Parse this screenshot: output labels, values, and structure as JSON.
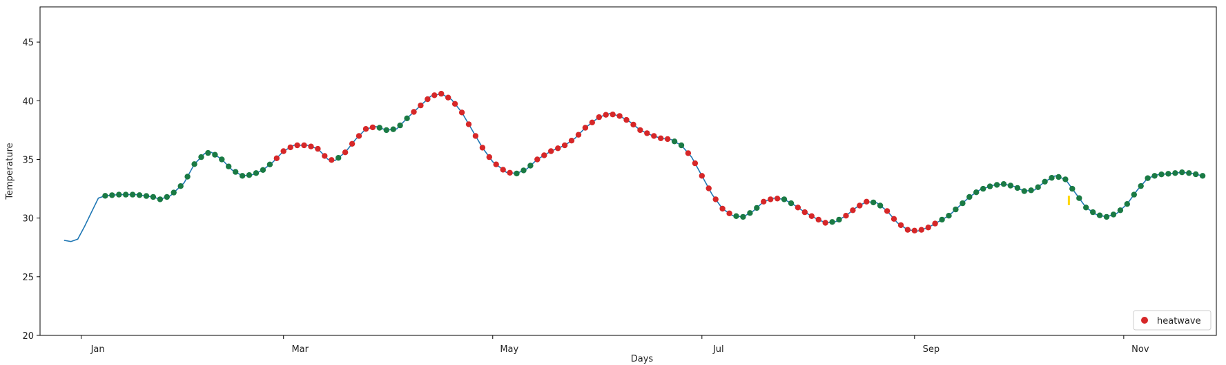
{
  "chart_data": {
    "type": "line",
    "title": "",
    "xlabel": "Days",
    "ylabel": "Temperature",
    "ylim": [
      20,
      48
    ],
    "xlim": [
      "2020-12-20",
      "2021-11-28"
    ],
    "y_ticks": [
      20,
      25,
      30,
      35,
      40,
      45
    ],
    "x_ticks": [
      {
        "date": "2021-01-01",
        "label": "Jan"
      },
      {
        "date": "2021-03-01",
        "label": "Mar"
      },
      {
        "date": "2021-05-01",
        "label": "May"
      },
      {
        "date": "2021-07-01",
        "label": "Jul"
      },
      {
        "date": "2021-09-01",
        "label": "Sep"
      },
      {
        "date": "2021-11-01",
        "label": "Nov"
      }
    ],
    "grid": false,
    "legend": {
      "placement": "bottom-right",
      "entries": [
        {
          "label": "heatwave",
          "color": "#d62728",
          "marker": "circle"
        }
      ]
    },
    "series_colors": {
      "line": "#1f77b4",
      "normal_marker": "#1a7a44",
      "heatwave_marker": "#d62728",
      "annotation": "#ffd700"
    },
    "temperature_curve": [
      [
        "2020-12-27",
        28.1
      ],
      [
        "2020-12-29",
        28.0
      ],
      [
        "2020-12-31",
        28.2
      ],
      [
        "2021-01-02",
        29.3
      ],
      [
        "2021-01-04",
        30.5
      ],
      [
        "2021-01-06",
        31.7
      ],
      [
        "2021-01-08",
        31.9
      ],
      [
        "2021-01-12",
        32.0
      ],
      [
        "2021-01-17",
        32.0
      ],
      [
        "2021-01-22",
        31.8
      ],
      [
        "2021-01-24",
        31.6
      ],
      [
        "2021-01-27",
        31.9
      ],
      [
        "2021-01-31",
        33.0
      ],
      [
        "2021-02-03",
        34.6
      ],
      [
        "2021-02-06",
        35.5
      ],
      [
        "2021-02-08",
        35.6
      ],
      [
        "2021-02-11",
        35.0
      ],
      [
        "2021-02-14",
        34.1
      ],
      [
        "2021-02-17",
        33.6
      ],
      [
        "2021-02-20",
        33.7
      ],
      [
        "2021-02-23",
        34.1
      ],
      [
        "2021-02-26",
        34.8
      ],
      [
        "2021-03-01",
        35.7
      ],
      [
        "2021-03-04",
        36.2
      ],
      [
        "2021-03-08",
        36.2
      ],
      [
        "2021-03-11",
        35.9
      ],
      [
        "2021-03-14",
        35.0
      ],
      [
        "2021-03-16",
        34.9
      ],
      [
        "2021-03-19",
        35.6
      ],
      [
        "2021-03-22",
        36.7
      ],
      [
        "2021-03-25",
        37.6
      ],
      [
        "2021-03-28",
        37.8
      ],
      [
        "2021-03-31",
        37.5
      ],
      [
        "2021-04-03",
        37.6
      ],
      [
        "2021-04-06",
        38.5
      ],
      [
        "2021-04-10",
        39.6
      ],
      [
        "2021-04-13",
        40.4
      ],
      [
        "2021-04-16",
        40.6
      ],
      [
        "2021-04-19",
        40.1
      ],
      [
        "2021-04-22",
        39.0
      ],
      [
        "2021-04-25",
        37.5
      ],
      [
        "2021-04-28",
        36.0
      ],
      [
        "2021-05-01",
        34.8
      ],
      [
        "2021-05-05",
        33.9
      ],
      [
        "2021-05-08",
        33.8
      ],
      [
        "2021-05-11",
        34.2
      ],
      [
        "2021-05-14",
        35.0
      ],
      [
        "2021-05-18",
        35.7
      ],
      [
        "2021-05-22",
        36.2
      ],
      [
        "2021-05-25",
        36.8
      ],
      [
        "2021-05-28",
        37.7
      ],
      [
        "2021-06-01",
        38.6
      ],
      [
        "2021-06-04",
        38.9
      ],
      [
        "2021-06-07",
        38.7
      ],
      [
        "2021-06-10",
        38.2
      ],
      [
        "2021-06-13",
        37.5
      ],
      [
        "2021-06-16",
        37.1
      ],
      [
        "2021-06-19",
        36.8
      ],
      [
        "2021-06-22",
        36.7
      ],
      [
        "2021-06-25",
        36.2
      ],
      [
        "2021-06-28",
        35.2
      ],
      [
        "2021-07-01",
        33.6
      ],
      [
        "2021-07-04",
        32.0
      ],
      [
        "2021-07-07",
        30.8
      ],
      [
        "2021-07-10",
        30.2
      ],
      [
        "2021-07-13",
        30.1
      ],
      [
        "2021-07-16",
        30.6
      ],
      [
        "2021-07-19",
        31.4
      ],
      [
        "2021-07-22",
        31.7
      ],
      [
        "2021-07-25",
        31.6
      ],
      [
        "2021-07-28",
        31.1
      ],
      [
        "2021-07-31",
        30.5
      ],
      [
        "2021-08-03",
        30.0
      ],
      [
        "2021-08-06",
        29.6
      ],
      [
        "2021-08-09",
        29.7
      ],
      [
        "2021-08-12",
        30.2
      ],
      [
        "2021-08-15",
        30.9
      ],
      [
        "2021-08-18",
        31.4
      ],
      [
        "2021-08-21",
        31.3
      ],
      [
        "2021-08-24",
        30.6
      ],
      [
        "2021-08-27",
        29.6
      ],
      [
        "2021-08-30",
        29.0
      ],
      [
        "2021-09-02",
        28.9
      ],
      [
        "2021-09-05",
        29.2
      ],
      [
        "2021-09-08",
        29.7
      ],
      [
        "2021-09-11",
        30.2
      ],
      [
        "2021-09-14",
        31.0
      ],
      [
        "2021-09-17",
        31.8
      ],
      [
        "2021-09-20",
        32.4
      ],
      [
        "2021-09-24",
        32.8
      ],
      [
        "2021-09-27",
        32.9
      ],
      [
        "2021-09-30",
        32.7
      ],
      [
        "2021-10-03",
        32.3
      ],
      [
        "2021-10-06",
        32.4
      ],
      [
        "2021-10-09",
        33.1
      ],
      [
        "2021-10-12",
        33.6
      ],
      [
        "2021-10-15",
        33.3
      ],
      [
        "2021-10-18",
        32.1
      ],
      [
        "2021-10-21",
        30.9
      ],
      [
        "2021-10-24",
        30.3
      ],
      [
        "2021-10-27",
        30.1
      ],
      [
        "2021-10-30",
        30.4
      ],
      [
        "2021-11-02",
        31.2
      ],
      [
        "2021-11-05",
        32.4
      ],
      [
        "2021-11-08",
        33.4
      ],
      [
        "2021-11-11",
        33.7
      ],
      [
        "2021-11-15",
        33.8
      ],
      [
        "2021-11-18",
        33.9
      ],
      [
        "2021-11-21",
        33.8
      ],
      [
        "2021-11-24",
        33.6
      ]
    ]
  }
}
